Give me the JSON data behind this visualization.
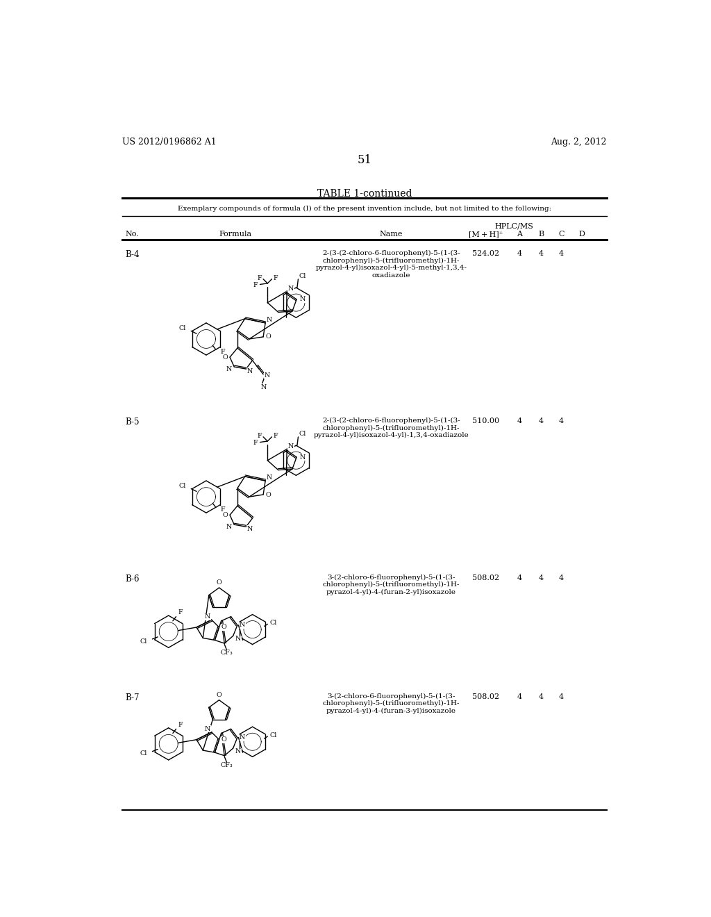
{
  "page_number": "51",
  "header_left": "US 2012/0196862 A1",
  "header_right": "Aug. 2, 2012",
  "table_title": "TABLE 1-continued",
  "table_subtitle": "Exemplary compounds of formula (I) of the present invention include, but not limited to the following:",
  "hplcms_label": "HPLC/MS",
  "rows": [
    {
      "no": "B-4",
      "name": "2-(3-(2-chloro-6-fluorophenyl)-5-(1-(3-\nchlorophenyl)-5-(trifluoromethyl)-1H-\npyrazol-4-yl)isoxazol-4-yl)-5-methyl-1,3,4-\noxadiazole",
      "mh": "524.02",
      "A": "4",
      "B": "4",
      "C": "4",
      "D": ""
    },
    {
      "no": "B-5",
      "name": "2-(3-(2-chloro-6-fluorophenyl)-5-(1-(3-\nchlorophenyl)-5-(trifluoromethyl)-1H-\npyrazol-4-yl)isoxazol-4-yl)-1,3,4-oxadiazole",
      "mh": "510.00",
      "A": "4",
      "B": "4",
      "C": "4",
      "D": ""
    },
    {
      "no": "B-6",
      "name": "3-(2-chloro-6-fluorophenyl)-5-(1-(3-\nchlorophenyl)-5-(trifluoromethyl)-1H-\npyrazol-4-yl)-4-(furan-2-yl)isoxazole",
      "mh": "508.02",
      "A": "4",
      "B": "4",
      "C": "4",
      "D": ""
    },
    {
      "no": "B-7",
      "name": "3-(2-chloro-6-fluorophenyl)-5-(1-(3-\nchlorophenyl)-5-(trifluoromethyl)-1H-\npyrazol-4-yl)-4-(furan-3-yl)isoxazole",
      "mh": "508.02",
      "A": "4",
      "B": "4",
      "C": "4",
      "D": ""
    }
  ]
}
